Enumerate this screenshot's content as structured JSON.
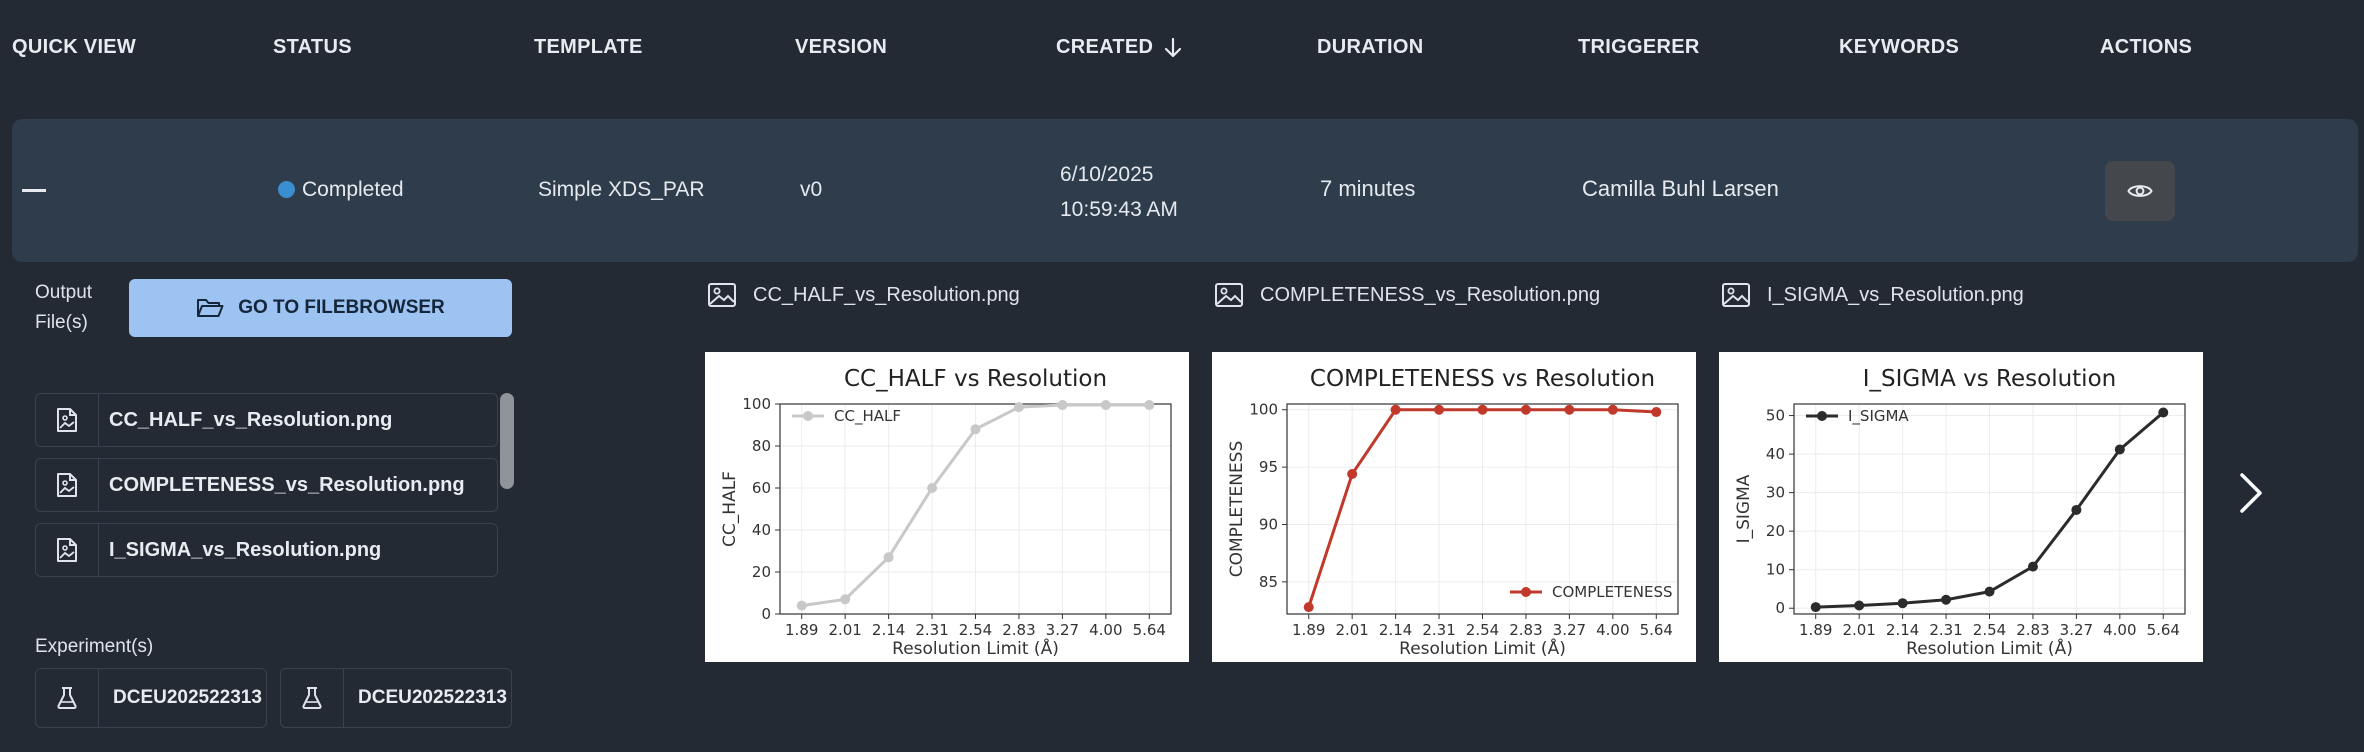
{
  "table": {
    "headers": {
      "quick_view": "QUICK VIEW",
      "status": "STATUS",
      "template": "TEMPLATE",
      "version": "VERSION",
      "created": "CREATED",
      "duration": "DURATION",
      "triggerer": "TRIGGERER",
      "keywords": "KEYWORDS",
      "actions": "ACTIONS"
    },
    "sort_icon": "arrow-down-icon",
    "row": {
      "status": "Completed",
      "status_color": "#3b8ed0",
      "template": "Simple XDS_PAR",
      "version": "v0",
      "created_date": "6/10/2025",
      "created_time": "10:59:43 AM",
      "duration": "7 minutes",
      "triggerer": "Camilla Buhl Larsen",
      "keywords": "",
      "action_icon": "eye-icon"
    }
  },
  "details": {
    "output_label_line1": "Output",
    "output_label_line2": "File(s)",
    "filebrowser_button": "GO TO FILEBROWSER",
    "files": [
      {
        "name": "CC_HALF_vs_Resolution.png"
      },
      {
        "name": "COMPLETENESS_vs_Resolution.png"
      },
      {
        "name": "I_SIGMA_vs_Resolution.png"
      }
    ],
    "experiments_label": "Experiment(s)",
    "experiments": [
      {
        "name": "DCEU202522313"
      },
      {
        "name": "DCEU202522313"
      }
    ],
    "image_titles": [
      "CC_HALF_vs_Resolution.png",
      "COMPLETENESS_vs_Resolution.png",
      "I_SIGMA_vs_Resolution.png"
    ]
  },
  "chart_data": [
    {
      "type": "line",
      "title": "CC_HALF vs Resolution",
      "xlabel": "Resolution Limit (Å)",
      "ylabel": "CC_HALF",
      "categories": [
        "1.89",
        "2.01",
        "2.14",
        "2.31",
        "2.54",
        "2.83",
        "3.27",
        "4.00",
        "5.64"
      ],
      "series": [
        {
          "name": "CC_HALF",
          "values": [
            4,
            7,
            27,
            60,
            88,
            98.5,
            99.5,
            99.5,
            99.5
          ],
          "color": "#c8c8c8"
        }
      ],
      "ylim": [
        0,
        100
      ],
      "yticks": [
        0,
        20,
        40,
        60,
        80,
        100
      ],
      "legend": "top-left",
      "grid": true
    },
    {
      "type": "line",
      "title": "COMPLETENESS vs Resolution",
      "xlabel": "Resolution Limit (Å)",
      "ylabel": "COMPLETENESS",
      "categories": [
        "1.89",
        "2.01",
        "2.14",
        "2.31",
        "2.54",
        "2.83",
        "3.27",
        "4.00",
        "5.64"
      ],
      "series": [
        {
          "name": "COMPLETENESS",
          "values": [
            82.8,
            94.4,
            100,
            100,
            100,
            100,
            100,
            100,
            99.8
          ],
          "color": "#c0392b"
        }
      ],
      "ylim": [
        82.2,
        100.5
      ],
      "yticks": [
        85,
        90,
        95,
        100
      ],
      "legend": "bottom-right",
      "grid": true
    },
    {
      "type": "line",
      "title": "I_SIGMA vs Resolution",
      "xlabel": "Resolution Limit (Å)",
      "ylabel": "I_SIGMA",
      "categories": [
        "1.89",
        "2.01",
        "2.14",
        "2.31",
        "2.54",
        "2.83",
        "3.27",
        "4.00",
        "5.64"
      ],
      "series": [
        {
          "name": "I_SIGMA",
          "values": [
            0.3,
            0.7,
            1.3,
            2.2,
            4.3,
            10.8,
            25.5,
            41.2,
            50.8
          ],
          "color": "#2b2b2b"
        }
      ],
      "ylim": [
        -1.5,
        53
      ],
      "yticks": [
        0,
        10,
        20,
        30,
        40,
        50
      ],
      "legend": "top-left",
      "grid": true
    }
  ],
  "nav": {
    "next_icon": "chevron-right-icon"
  }
}
